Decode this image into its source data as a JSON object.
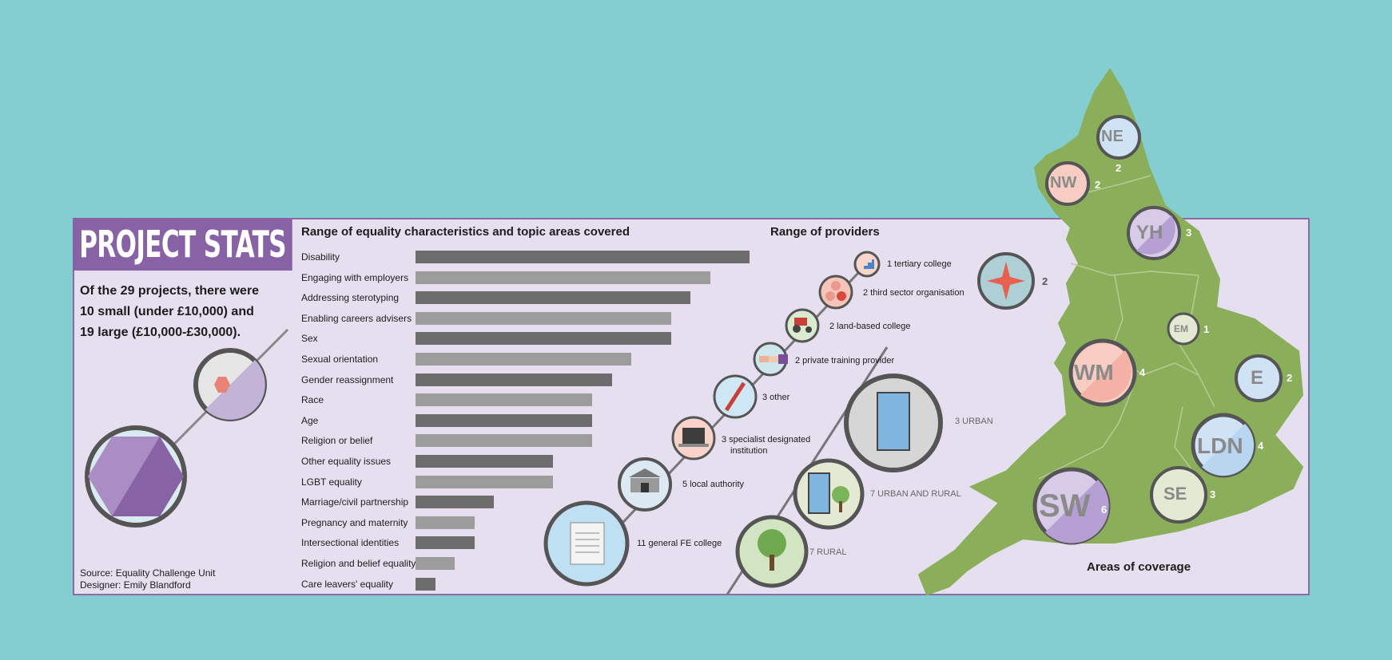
{
  "header": {
    "title": "PROJECT STATS",
    "summary": [
      "Of the 29 projects, there were",
      "10 small (under £10,000) and",
      "19 large (£10,000-£30,000)."
    ],
    "source": "Source: Equality Challenge Unit",
    "designer": "Designer: Emily Blandford"
  },
  "colors": {
    "background": "#84cdd0",
    "panel": "#e5dff0",
    "accent_purple": "#8763a5",
    "bar_dark": "#6d6d6d",
    "bar_light": "#9c9c9c",
    "map_green": "#8aae5a"
  },
  "chart_data": [
    {
      "type": "bar",
      "orientation": "horizontal",
      "title": "Range of equality characteristics and topic areas covered",
      "categories": [
        "Disability",
        "Engaging with employers",
        "Addressing sterotyping",
        "Enabling careers advisers",
        "Sex",
        "Sexual orientation",
        "Gender reassignment",
        "Race",
        "Age",
        "Religion or belief",
        "Other equality issues",
        "LGBT equality",
        "Marriage/civil partnership",
        "Pregnancy and maternity",
        "Intersectional identities",
        "Religion and belief equality",
        "Care leavers' equality"
      ],
      "values": [
        17,
        15,
        14,
        13,
        13,
        11,
        10,
        9,
        9,
        9,
        7,
        7,
        4,
        3,
        3,
        2,
        1
      ],
      "xlim": [
        0,
        17
      ]
    },
    {
      "type": "pie",
      "subject": "project size",
      "categories": [
        "small",
        "large"
      ],
      "values": [
        10,
        19
      ]
    }
  ],
  "providers": {
    "title": "Range of providers",
    "items": [
      {
        "label": "1 tertiary college",
        "icon": "stairs-icon"
      },
      {
        "label": "2 third sector organisation",
        "icon": "people-icon"
      },
      {
        "label": "2 land-based college",
        "icon": "tractor-icon"
      },
      {
        "label": "2 private training provider",
        "icon": "handshake-icon"
      },
      {
        "label": "3 other",
        "icon": "pencil-icon"
      },
      {
        "label": "3 specialist designated",
        "label2": "institution",
        "icon": "laptop-icon"
      },
      {
        "label": "5 local authority",
        "icon": "town-hall-icon"
      },
      {
        "label": "11 general FE college",
        "icon": "scroll-icon"
      }
    ],
    "settings": [
      {
        "label": "3 URBAN",
        "icon": "building-icon"
      },
      {
        "label": "7 URBAN AND RURAL",
        "icon": "building-tree-icon"
      },
      {
        "label": "7 RURAL",
        "icon": "tree-icon"
      }
    ]
  },
  "map": {
    "title": "Areas of coverage",
    "regions": [
      {
        "code": "NE",
        "count": "2"
      },
      {
        "code": "NW",
        "count": "2"
      },
      {
        "code": "YH",
        "count": "3"
      },
      {
        "code": "",
        "count": "2"
      },
      {
        "code": "EM",
        "count": "1"
      },
      {
        "code": "WM",
        "count": "4"
      },
      {
        "code": "E",
        "count": "2"
      },
      {
        "code": "LDN",
        "count": "4"
      },
      {
        "code": "SE",
        "count": "3"
      },
      {
        "code": "SW",
        "count": "6"
      }
    ]
  }
}
